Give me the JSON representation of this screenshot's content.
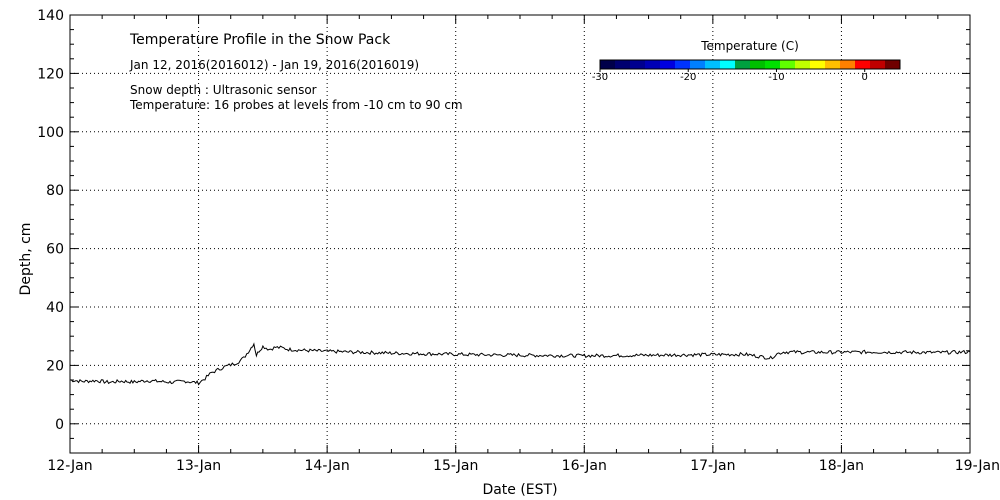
{
  "chart_data": {
    "type": "line",
    "title": "Temperature Profile in the Snow Pack",
    "subtitle": "Jan 12, 2016(2016012) - Jan 19, 2016(2016019)",
    "annotations": [
      "Snow depth : Ultrasonic sensor",
      "Temperature: 16 probes at levels from -10 cm to 90 cm"
    ],
    "xlabel": "Date (EST)",
    "ylabel": "Depth, cm",
    "xlim": [
      0,
      7
    ],
    "ylim": [
      -10,
      140
    ],
    "x_ticks": [
      {
        "value": 0,
        "label": "12-Jan"
      },
      {
        "value": 1,
        "label": "13-Jan"
      },
      {
        "value": 2,
        "label": "14-Jan"
      },
      {
        "value": 3,
        "label": "15-Jan"
      },
      {
        "value": 4,
        "label": "16-Jan"
      },
      {
        "value": 5,
        "label": "17-Jan"
      },
      {
        "value": 6,
        "label": "18-Jan"
      },
      {
        "value": 7,
        "label": "19-Jan"
      }
    ],
    "y_ticks": [
      0,
      20,
      40,
      60,
      80,
      100,
      120,
      140
    ],
    "grid": true,
    "series": [
      {
        "x": [
          0,
          0.1,
          0.2,
          0.3,
          0.4,
          0.5,
          0.6,
          0.7,
          0.8,
          0.9,
          1.0,
          1.05,
          1.1,
          1.15,
          1.2,
          1.25,
          1.3,
          1.35,
          1.4,
          1.43,
          1.45,
          1.47,
          1.5,
          1.55,
          1.6,
          1.65,
          1.7,
          1.8,
          1.9,
          2.0,
          2.25,
          2.5,
          2.75,
          3.0,
          3.25,
          3.5,
          3.75,
          4.0,
          4.25,
          4.5,
          4.75,
          5.0,
          5.25,
          5.45,
          5.5,
          5.55,
          5.75,
          6.0,
          6.25,
          6.5,
          6.75,
          7.0
        ],
        "y": [
          15,
          14.5,
          14.8,
          14.2,
          14.6,
          14.3,
          14.8,
          14.5,
          14.2,
          14.6,
          14.0,
          15.5,
          17.5,
          18.5,
          19.5,
          20.2,
          21.0,
          22.5,
          25.5,
          27.5,
          23.5,
          25.0,
          26.5,
          25.5,
          26.2,
          26.0,
          25.5,
          25.2,
          25.0,
          24.8,
          24.5,
          24.2,
          24.0,
          23.8,
          23.6,
          23.5,
          23.4,
          23.3,
          23.4,
          23.5,
          23.6,
          23.7,
          23.8,
          22.5,
          24.0,
          24.6,
          24.5,
          24.5,
          24.6,
          24.5,
          24.4,
          24.6
        ]
      }
    ],
    "colorbar": {
      "title": "Temperature (C)",
      "ticks": [
        -30,
        -20,
        -10,
        0
      ],
      "range": [
        -30,
        4
      ],
      "colors": [
        "#00004a",
        "#000070",
        "#00008f",
        "#0000b5",
        "#0000e0",
        "#0033ff",
        "#0080ff",
        "#00bfff",
        "#00ffff",
        "#00a040",
        "#00c000",
        "#00e000",
        "#60ff00",
        "#c0ff00",
        "#ffff00",
        "#ffc000",
        "#ff8000",
        "#ff0000",
        "#c00000",
        "#700000"
      ]
    }
  }
}
